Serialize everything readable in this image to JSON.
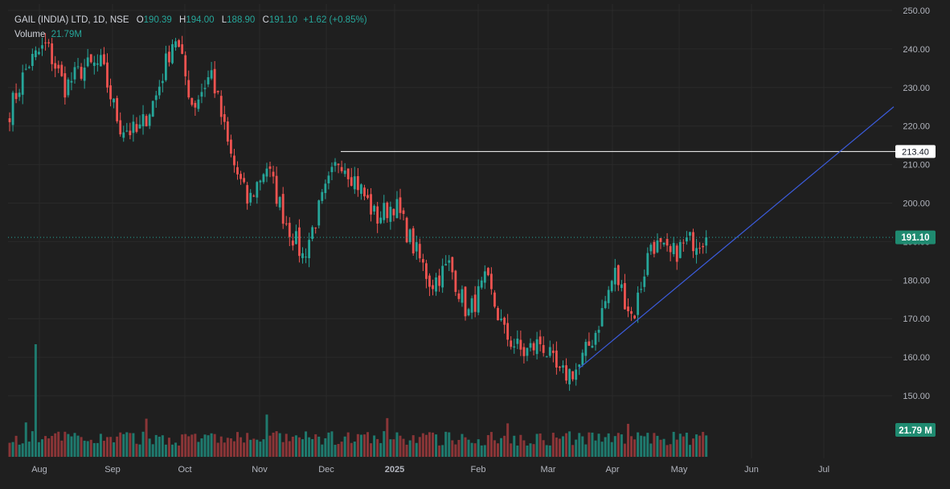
{
  "header": {
    "symbol": "GAIL (INDIA) LTD, 1D, NSE",
    "open_label": "O",
    "open": "190.39",
    "high_label": "H",
    "high": "194.00",
    "low_label": "L",
    "low": "188.90",
    "close_label": "C",
    "close": "191.10",
    "change": "+1.62 (+0.85%)",
    "volume_label": "Volume",
    "volume_value": "21.79",
    "volume_unit": "M"
  },
  "price_axis": {
    "ticks": [
      "250.00",
      "240.00",
      "230.00",
      "220.00",
      "210.00",
      "200.00",
      "190.00",
      "180.00",
      "170.00",
      "160.00",
      "150.00"
    ],
    "current_price": "191.10",
    "marked_level": "213.40",
    "volume_badge": "21.79 M"
  },
  "time_axis": {
    "labels": [
      "Aug",
      "Sep",
      "Oct",
      "Nov",
      "Dec",
      "2025",
      "Feb",
      "Mar",
      "Apr",
      "May",
      "Jun",
      "Jul"
    ]
  },
  "colors": {
    "up": "#26a69a",
    "down": "#ef5350",
    "up_volume": "#1f7a6e",
    "down_volume": "#8a3537",
    "trendline": "#3b5bdb",
    "level_line": "#ffffff",
    "background": "#1f1f1f",
    "grid": "#2a2a2a"
  },
  "chart_data": {
    "type": "candlestick",
    "title": "GAIL (INDIA) LTD, 1D, NSE",
    "ylim": [
      146,
      251
    ],
    "x_range": [
      "Jul 2024",
      "Jul 2025"
    ],
    "grid": true,
    "close_series": [
      {
        "date": "Jul",
        "close": 224
      },
      {
        "date": "Aug",
        "close": 236
      },
      {
        "date": "Aug",
        "close": 241
      },
      {
        "date": "Aug",
        "close": 230
      },
      {
        "date": "Sep",
        "close": 235
      },
      {
        "date": "Sep",
        "close": 236
      },
      {
        "date": "Sep",
        "close": 220
      },
      {
        "date": "Sep",
        "close": 218
      },
      {
        "date": "Oct",
        "close": 228
      },
      {
        "date": "Oct",
        "close": 244
      },
      {
        "date": "Oct",
        "close": 225
      },
      {
        "date": "Oct",
        "close": 234
      },
      {
        "date": "Oct",
        "close": 213
      },
      {
        "date": "Nov",
        "close": 200
      },
      {
        "date": "Nov",
        "close": 210
      },
      {
        "date": "Nov",
        "close": 196
      },
      {
        "date": "Nov",
        "close": 186
      },
      {
        "date": "Nov",
        "close": 200
      },
      {
        "date": "Dec",
        "close": 212
      },
      {
        "date": "Dec",
        "close": 205
      },
      {
        "date": "Dec",
        "close": 196
      },
      {
        "date": "Dec",
        "close": 200
      },
      {
        "date": "2025",
        "close": 189
      },
      {
        "date": "2025",
        "close": 179
      },
      {
        "date": "2025",
        "close": 184
      },
      {
        "date": "2025",
        "close": 171
      },
      {
        "date": "Feb",
        "close": 180
      },
      {
        "date": "Feb",
        "close": 166
      },
      {
        "date": "Feb",
        "close": 161
      },
      {
        "date": "Feb",
        "close": 164
      },
      {
        "date": "Mar",
        "close": 155
      },
      {
        "date": "Mar",
        "close": 157
      },
      {
        "date": "Mar",
        "close": 167
      },
      {
        "date": "Apr",
        "close": 182
      },
      {
        "date": "Apr",
        "close": 170
      },
      {
        "date": "Apr",
        "close": 190
      },
      {
        "date": "May",
        "close": 186
      },
      {
        "date": "May",
        "close": 190
      },
      {
        "date": "May",
        "close": 191.1
      }
    ],
    "horizontal_level": 213.4,
    "trendline": {
      "from": {
        "date": "Mar",
        "price": 157
      },
      "to": {
        "date": "Jul",
        "price": 225
      }
    },
    "last_volume": "21.79M"
  }
}
